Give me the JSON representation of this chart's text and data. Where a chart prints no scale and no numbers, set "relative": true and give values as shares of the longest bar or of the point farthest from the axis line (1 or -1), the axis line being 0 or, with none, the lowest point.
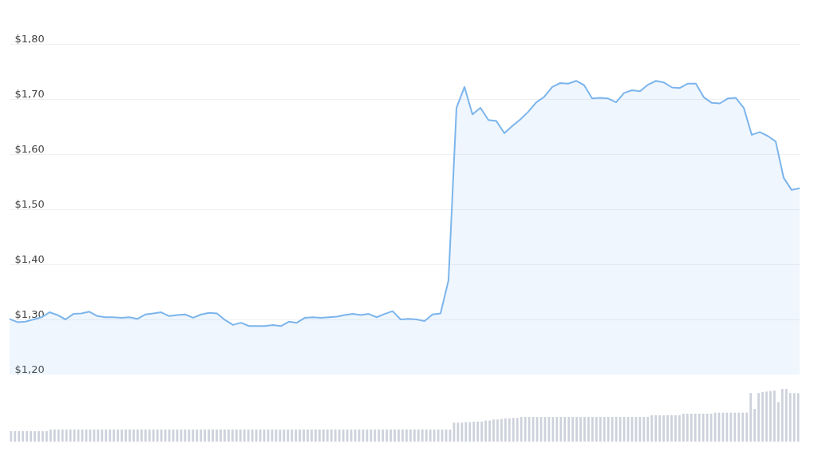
{
  "chart_data": [
    {
      "type": "area",
      "color": "#7cb5ec",
      "grid": "y",
      "tick_labels": "y",
      "ylim": [
        1.2,
        1.8
      ],
      "yticks": [
        {
          "value": 1.2,
          "label": "$1,20"
        },
        {
          "value": 1.3,
          "label": "$1,30"
        },
        {
          "value": 1.4,
          "label": "$1,40"
        },
        {
          "value": 1.5,
          "label": "$1,50"
        },
        {
          "value": 1.6,
          "label": "$1,60"
        },
        {
          "value": 1.7,
          "label": "$1,70"
        },
        {
          "value": 1.8,
          "label": "$1,80"
        }
      ],
      "categories": [
        null,
        null,
        null,
        null,
        null,
        null,
        null,
        null,
        null,
        null,
        null,
        null,
        null,
        null,
        null,
        null,
        null,
        null,
        null,
        null,
        null,
        null,
        null,
        null,
        null,
        null,
        null,
        null,
        null,
        null,
        null,
        null,
        null,
        null,
        null,
        null,
        null,
        null,
        null,
        null,
        null,
        null,
        null,
        null,
        null,
        null,
        null,
        null,
        null,
        null,
        null,
        null,
        null,
        null,
        null,
        null,
        null,
        null,
        null,
        null,
        null,
        null,
        null,
        null,
        null,
        null,
        null,
        null,
        null,
        null,
        null,
        null,
        null,
        null,
        null,
        null,
        null,
        null,
        null,
        null,
        null,
        null,
        null,
        null,
        null,
        null,
        null,
        null,
        null,
        null,
        null,
        null,
        null,
        null,
        null,
        null,
        null,
        null,
        null,
        null
      ],
      "values": [
        1.301,
        1.295,
        1.296,
        1.3,
        1.304,
        1.313,
        1.308,
        1.3,
        1.31,
        1.311,
        1.314,
        1.306,
        1.304,
        1.304,
        1.303,
        1.304,
        1.301,
        1.309,
        1.311,
        1.313,
        1.306,
        1.308,
        1.309,
        1.303,
        1.309,
        1.312,
        1.311,
        1.299,
        1.29,
        1.294,
        1.288,
        1.288,
        1.288,
        1.29,
        1.288,
        1.296,
        1.294,
        1.303,
        1.304,
        1.303,
        1.304,
        1.305,
        1.308,
        1.31,
        1.308,
        1.31,
        1.304,
        1.31,
        1.315,
        1.3,
        1.301,
        1.3,
        1.297,
        1.309,
        1.311,
        1.371,
        1.684,
        1.722,
        1.672,
        1.684,
        1.662,
        1.66,
        1.638,
        1.651,
        1.663,
        1.677,
        1.694,
        1.704,
        1.722,
        1.729,
        1.728,
        1.733,
        1.725,
        1.701,
        1.702,
        1.701,
        1.694,
        1.711,
        1.716,
        1.714,
        1.726,
        1.733,
        1.73,
        1.721,
        1.72,
        1.728,
        1.728,
        1.703,
        1.693,
        1.692,
        1.701,
        1.702,
        1.684,
        1.635,
        1.64,
        1.633,
        1.623,
        1.557,
        1.535,
        1.538
      ]
    },
    {
      "type": "bar",
      "relative": true,
      "color": "#cdd1db",
      "categories": [
        null,
        null,
        null,
        null,
        null,
        null,
        null,
        null,
        null,
        null,
        null,
        null,
        null,
        null,
        null,
        null,
        null,
        null,
        null,
        null,
        null,
        null,
        null,
        null,
        null,
        null,
        null,
        null,
        null,
        null,
        null,
        null,
        null,
        null,
        null,
        null,
        null,
        null,
        null,
        null,
        null,
        null,
        null,
        null,
        null,
        null,
        null,
        null,
        null,
        null,
        null,
        null,
        null,
        null,
        null,
        null,
        null,
        null,
        null,
        null,
        null,
        null,
        null,
        null,
        null,
        null,
        null,
        null,
        null,
        null,
        null,
        null,
        null,
        null,
        null,
        null,
        null,
        null,
        null,
        null,
        null,
        null,
        null,
        null,
        null,
        null,
        null,
        null,
        null,
        null,
        null,
        null,
        null,
        null,
        null,
        null,
        null,
        null,
        null,
        null,
        null,
        null,
        null,
        null,
        null,
        null,
        null,
        null,
        null,
        null,
        null,
        null,
        null,
        null,
        null,
        null,
        null,
        null,
        null,
        null,
        null,
        null,
        null,
        null,
        null,
        null,
        null,
        null,
        null,
        null,
        null,
        null,
        null,
        null,
        null,
        null,
        null,
        null,
        null,
        null,
        null,
        null,
        null,
        null,
        null,
        null,
        null,
        null,
        null,
        null,
        null,
        null,
        null,
        null,
        null,
        null,
        null,
        null,
        null,
        null,
        null,
        null,
        null,
        null,
        null,
        null,
        null,
        null,
        null,
        null,
        null,
        null,
        null,
        null,
        null,
        null,
        null,
        null,
        null,
        null,
        null,
        null,
        null,
        null,
        null,
        null,
        null,
        null,
        null,
        null,
        null,
        null,
        null,
        null,
        null,
        null,
        null,
        null,
        null,
        null
      ],
      "values": [
        0.2,
        0.2,
        0.2,
        0.2,
        0.2,
        0.2,
        0.2,
        0.2,
        0.2,
        0.2,
        0.23,
        0.23,
        0.23,
        0.23,
        0.23,
        0.23,
        0.23,
        0.23,
        0.23,
        0.23,
        0.23,
        0.23,
        0.23,
        0.23,
        0.23,
        0.23,
        0.23,
        0.23,
        0.23,
        0.23,
        0.23,
        0.23,
        0.23,
        0.23,
        0.23,
        0.23,
        0.23,
        0.23,
        0.23,
        0.23,
        0.23,
        0.23,
        0.23,
        0.23,
        0.23,
        0.23,
        0.23,
        0.23,
        0.23,
        0.23,
        0.23,
        0.23,
        0.23,
        0.23,
        0.23,
        0.23,
        0.23,
        0.23,
        0.23,
        0.23,
        0.23,
        0.23,
        0.23,
        0.23,
        0.23,
        0.23,
        0.23,
        0.23,
        0.23,
        0.23,
        0.23,
        0.23,
        0.23,
        0.23,
        0.23,
        0.23,
        0.23,
        0.23,
        0.23,
        0.23,
        0.23,
        0.23,
        0.23,
        0.23,
        0.23,
        0.23,
        0.23,
        0.23,
        0.23,
        0.23,
        0.23,
        0.23,
        0.23,
        0.23,
        0.23,
        0.23,
        0.23,
        0.23,
        0.23,
        0.23,
        0.23,
        0.23,
        0.23,
        0.23,
        0.23,
        0.23,
        0.23,
        0.23,
        0.23,
        0.23,
        0.23,
        0.23,
        0.36,
        0.36,
        0.36,
        0.37,
        0.37,
        0.38,
        0.38,
        0.38,
        0.4,
        0.4,
        0.42,
        0.42,
        0.43,
        0.44,
        0.44,
        0.45,
        0.45,
        0.47,
        0.47,
        0.47,
        0.47,
        0.47,
        0.47,
        0.47,
        0.47,
        0.47,
        0.47,
        0.47,
        0.47,
        0.47,
        0.47,
        0.47,
        0.47,
        0.47,
        0.47,
        0.47,
        0.47,
        0.47,
        0.47,
        0.47,
        0.47,
        0.47,
        0.47,
        0.47,
        0.47,
        0.47,
        0.47,
        0.47,
        0.47,
        0.47,
        0.5,
        0.5,
        0.5,
        0.5,
        0.5,
        0.5,
        0.5,
        0.5,
        0.53,
        0.53,
        0.53,
        0.53,
        0.53,
        0.53,
        0.53,
        0.53,
        0.55,
        0.55,
        0.55,
        0.55,
        0.55,
        0.55,
        0.55,
        0.55,
        0.55,
        0.92,
        0.62,
        0.92,
        0.94,
        0.95,
        0.96,
        0.97,
        0.75,
        1.0,
        1.0,
        0.92,
        0.92,
        0.92
      ]
    }
  ]
}
